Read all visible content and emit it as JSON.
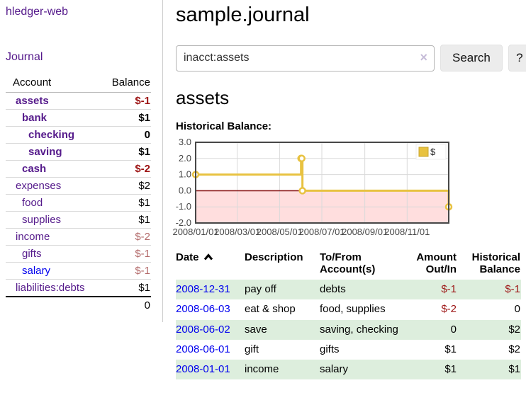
{
  "app": {
    "title": "hledger-web",
    "nav_journal": "Journal"
  },
  "sidebar": {
    "header": {
      "account": "Account",
      "balance": "Balance"
    },
    "accounts": [
      {
        "name": "assets",
        "indent": 1,
        "balance": "$-1",
        "bold": true,
        "link": "purple",
        "bal": "neg"
      },
      {
        "name": "bank",
        "indent": 2,
        "balance": "$1",
        "bold": true,
        "link": "purple",
        "bal": "plain"
      },
      {
        "name": "checking",
        "indent": 3,
        "balance": "0",
        "bold": true,
        "link": "purple",
        "bal": "plain"
      },
      {
        "name": "saving",
        "indent": 3,
        "balance": "$1",
        "bold": true,
        "link": "purple",
        "bal": "plain"
      },
      {
        "name": "cash",
        "indent": 2,
        "balance": "$-2",
        "bold": true,
        "link": "purple",
        "bal": "neg"
      },
      {
        "name": "expenses",
        "indent": 1,
        "balance": "$2",
        "bold": false,
        "link": "purple",
        "bal": "plain"
      },
      {
        "name": "food",
        "indent": 2,
        "balance": "$1",
        "bold": false,
        "link": "purple",
        "bal": "plain"
      },
      {
        "name": "supplies",
        "indent": 2,
        "balance": "$1",
        "bold": false,
        "link": "purple",
        "bal": "plain"
      },
      {
        "name": "income",
        "indent": 1,
        "balance": "$-2",
        "bold": false,
        "link": "purple",
        "bal": "negmuted"
      },
      {
        "name": "gifts",
        "indent": 2,
        "balance": "$-1",
        "bold": false,
        "link": "purple",
        "bal": "negmuted"
      },
      {
        "name": "salary",
        "indent": 2,
        "balance": "$-1",
        "bold": false,
        "link": "blue",
        "bal": "negmuted"
      },
      {
        "name": "liabilities:debts",
        "indent": 1,
        "balance": "$1",
        "bold": false,
        "link": "purple",
        "bal": "plain"
      }
    ],
    "total": "0"
  },
  "main": {
    "title": "sample.journal",
    "search": {
      "value": "inacct:assets",
      "clear_icon": "×",
      "button_label": "Search",
      "help_label": "?"
    },
    "account_heading": "assets",
    "chart_label": "Historical Balance:"
  },
  "chart_data": {
    "type": "line",
    "title": "Historical Balance:",
    "step": true,
    "series": [
      {
        "name": "$",
        "color": "#e8c240",
        "point_fill": "#ffffff",
        "points": [
          [
            "2008-01-01",
            1
          ],
          [
            "2008-06-01",
            2
          ],
          [
            "2008-06-02",
            2
          ],
          [
            "2008-06-03",
            0
          ],
          [
            "2008-12-31",
            -1
          ]
        ]
      }
    ],
    "xlim": [
      "2008-01-01",
      "2008-12-31"
    ],
    "ylim": [
      -2,
      3
    ],
    "yticks": [
      -2,
      -1,
      0,
      1,
      2,
      3
    ],
    "ytick_labels": [
      "-2.0",
      "-1.0",
      "0.0",
      "1.0",
      "2.0",
      "3.0"
    ],
    "xticks": [
      {
        "date": "2008-01-01",
        "label": "2008/01/01"
      },
      {
        "date": "2008-03-01",
        "label": "2008/03/01"
      },
      {
        "date": "2008-05-01",
        "label": "2008/05/01"
      },
      {
        "date": "2008-07-01",
        "label": "2008/07/01"
      },
      {
        "date": "2008-09-01",
        "label": "2008/09/01"
      },
      {
        "date": "2008-11-01",
        "label": "2008/11/01"
      }
    ],
    "grid": true,
    "grid_color": "#d9d9d9",
    "border_color": "#474747",
    "label_color": "#474747",
    "zero_line_color": "#8b1a1a",
    "negative_region_fill": "#ffdede",
    "legend": {
      "position": "top-right",
      "entries": [
        {
          "label": "$",
          "color": "#e8c240"
        }
      ]
    }
  },
  "transactions": {
    "headers": {
      "date": "Date",
      "description": "Description",
      "accounts": "To/From Account(s)",
      "amount": "Amount Out/In",
      "balance": "Historical Balance"
    },
    "rows": [
      {
        "date": "2008-12-31",
        "description": "pay off",
        "accounts": "debts",
        "amount": "$-1",
        "amount_negative": true,
        "balance": "$-1",
        "balance_negative": true
      },
      {
        "date": "2008-06-03",
        "description": "eat & shop",
        "accounts": "food, supplies",
        "amount": "$-2",
        "amount_negative": true,
        "balance": "0",
        "balance_negative": false
      },
      {
        "date": "2008-06-02",
        "description": "save",
        "accounts": "saving, checking",
        "amount": "0",
        "amount_negative": false,
        "balance": "$2",
        "balance_negative": false
      },
      {
        "date": "2008-06-01",
        "description": "gift",
        "accounts": "gifts",
        "amount": "$1",
        "amount_negative": false,
        "balance": "$2",
        "balance_negative": false
      },
      {
        "date": "2008-01-01",
        "description": "income",
        "accounts": "salary",
        "amount": "$1",
        "amount_negative": false,
        "balance": "$1",
        "balance_negative": false
      }
    ]
  },
  "colors": {
    "link_purple": "#551a8b",
    "link_blue": "#0000ee",
    "negative_strong": "#9d1515",
    "negative_muted": "#b36a6a",
    "row_green": "#ddeedd",
    "series_gold": "#e8c240"
  }
}
